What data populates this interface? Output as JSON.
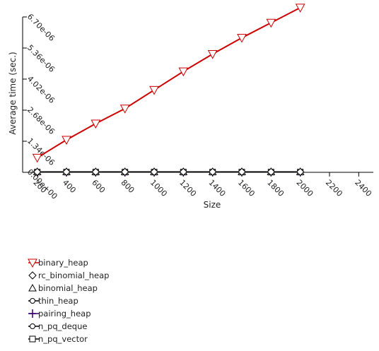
{
  "chart_data": {
    "type": "line",
    "title": "",
    "xlabel": "Size",
    "ylabel": "Average time (sec.)",
    "xlim": [
      100,
      2500
    ],
    "ylim": [
      0,
      6.7e-06
    ],
    "x_ticks": [
      200,
      400,
      600,
      800,
      1000,
      1200,
      1400,
      1600,
      1800,
      2000,
      2200,
      2400
    ],
    "x_tick_labels": [
      "200",
      "400",
      "600",
      "800",
      "1000",
      "1200",
      "1400",
      "1600",
      "1800",
      "2000",
      "2200",
      "2400"
    ],
    "y_ticks": [
      0,
      1.34e-06,
      2.68e-06,
      4.02e-06,
      5.36e-06,
      6.7e-06
    ],
    "y_tick_labels": [
      "0.00e+00",
      "1.34e-06",
      "2.68e-06",
      "4.02e-06",
      "5.36e-06",
      "6.70e-06"
    ],
    "grid": false,
    "legend_position": "bottom-left",
    "x": [
      200,
      400,
      600,
      800,
      1000,
      1200,
      1400,
      1600,
      1800,
      2000
    ],
    "series": [
      {
        "name": "binary_heap",
        "color": "#cc0000",
        "marker": "triangle-down",
        "values": [
          6.3e-07,
          1.4e-06,
          2.1e-06,
          2.75e-06,
          3.55e-06,
          4.35e-06,
          5.1e-06,
          5.8e-06,
          6.45e-06,
          7.1e-06
        ]
      },
      {
        "name": "rc_binomial_heap",
        "color": "#000000",
        "marker": "diamond",
        "values": [
          2e-08,
          2e-08,
          2e-08,
          2e-08,
          2e-08,
          2e-08,
          2e-08,
          2e-08,
          2e-08,
          2e-08
        ]
      },
      {
        "name": "binomial_heap",
        "color": "#000000",
        "marker": "triangle-up",
        "values": [
          2e-08,
          2e-08,
          2e-08,
          2e-08,
          2e-08,
          2e-08,
          2e-08,
          2e-08,
          2e-08,
          2e-08
        ]
      },
      {
        "name": "thin_heap",
        "color": "#000000",
        "marker": "circle-line",
        "values": [
          1e-08,
          1e-08,
          1e-08,
          1e-08,
          1e-08,
          1e-08,
          1e-08,
          1e-08,
          1e-08,
          1e-08
        ]
      },
      {
        "name": "pairing_heap",
        "color": "#330066",
        "marker": "plus",
        "values": [
          1e-08,
          1e-08,
          1e-08,
          1e-08,
          1e-08,
          1e-08,
          1e-08,
          1e-08,
          1e-08,
          1e-08
        ]
      },
      {
        "name": "n_pq_deque",
        "color": "#000000",
        "marker": "circle-line",
        "values": [
          1e-08,
          1e-08,
          1e-08,
          1e-08,
          1e-08,
          1e-08,
          1e-08,
          1e-08,
          1e-08,
          1e-08
        ]
      },
      {
        "name": "n_pq_vector",
        "color": "#000000",
        "marker": "square",
        "values": [
          1e-08,
          1e-08,
          1e-08,
          1e-08,
          1e-08,
          1e-08,
          1e-08,
          1e-08,
          1e-08,
          1e-08
        ]
      }
    ]
  }
}
